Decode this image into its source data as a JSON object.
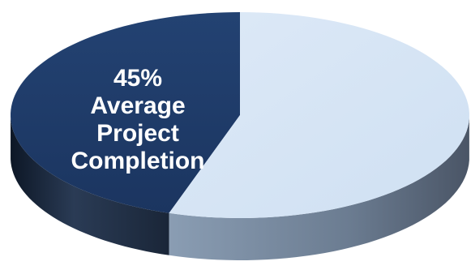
{
  "chart_data": {
    "type": "pie",
    "style": "3d",
    "slices": [
      {
        "value": 45,
        "color": "#1f3a66"
      },
      {
        "value": 55,
        "color": "#d6e5f5"
      }
    ],
    "label_lines": [
      "45%",
      "Average",
      "Project",
      "Completion"
    ]
  }
}
